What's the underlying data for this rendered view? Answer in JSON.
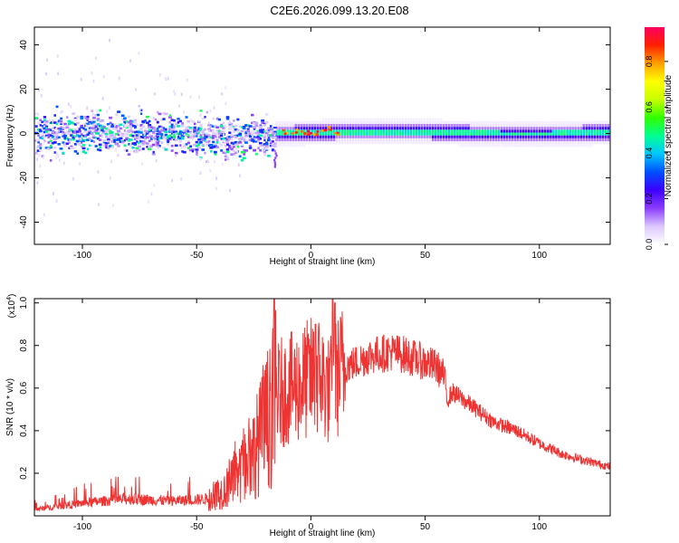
{
  "title": "C2E6.2026.099.13.20.E08",
  "chart_data": [
    {
      "type": "heatmap",
      "xlabel": "Height of straight line (km)",
      "ylabel": "Frequency (Hz)",
      "xlim": [
        -121,
        131
      ],
      "ylim": [
        -50,
        48
      ],
      "xticks": [
        -100,
        -50,
        0,
        50,
        100
      ],
      "yticks": [
        -40,
        -20,
        0,
        20,
        40
      ],
      "colorbar": {
        "label": "Normalized spectral amplitude",
        "range": [
          0,
          0.95
        ],
        "ticks": [
          0.0,
          0.2,
          0.4,
          0.6,
          0.8
        ],
        "colormap": [
          "#ffffff",
          "#dcc8ff",
          "#8a3cff",
          "#3c00ff",
          "#0050ff",
          "#00c8ff",
          "#00ff90",
          "#30ff00",
          "#c8ff00",
          "#ffff00",
          "#ffa000",
          "#ff2000",
          "#ff0060"
        ]
      },
      "description_values": {
        "noisy_band_range_km": [
          -121,
          -15
        ],
        "noisy_band_halfwidth_hz": 8,
        "stable_band_range_km": [
          -15,
          131
        ],
        "stable_band_center_hz": 0,
        "stable_band_peak_amplitude_near_km": [
          -5,
          10
        ]
      }
    },
    {
      "type": "line",
      "xlabel": "Height of straight line (km)",
      "ylabel": "SNR (10 * v/v)",
      "multiplier_label": "(x10",
      "multiplier_exp": "4",
      "multiplier_close": ")",
      "xlim": [
        -121,
        131
      ],
      "ylim": [
        0,
        1.02
      ],
      "xticks": [
        -100,
        -50,
        0,
        50,
        100
      ],
      "yticks": [
        0.2,
        0.4,
        0.6,
        0.8,
        1.0
      ],
      "ytick_labels": [
        "0.2",
        "0.4",
        "0.6",
        "0.8",
        "1.0"
      ],
      "series_color": "#ee3333",
      "envelope_km": [
        -121,
        -100,
        -80,
        -60,
        -45,
        -38,
        -30,
        -25,
        -20,
        -16,
        -13,
        -8,
        -4,
        0,
        4,
        8,
        10,
        14,
        20,
        25,
        30,
        35,
        40,
        45,
        50,
        55,
        58,
        60,
        62,
        70,
        80,
        90,
        100,
        110,
        120,
        131
      ],
      "envelope_snr": [
        0.03,
        0.06,
        0.08,
        0.07,
        0.08,
        0.12,
        0.2,
        0.3,
        0.42,
        0.55,
        0.58,
        0.6,
        0.62,
        0.65,
        0.66,
        0.58,
        0.62,
        0.7,
        0.72,
        0.75,
        0.76,
        0.77,
        0.76,
        0.74,
        0.72,
        0.7,
        0.66,
        0.55,
        0.58,
        0.52,
        0.44,
        0.4,
        0.34,
        0.29,
        0.26,
        0.23
      ],
      "spikes_km": [
        -16,
        2,
        9.5,
        10.5
      ],
      "spikes_snr": [
        1.02,
        0.9,
        1.02,
        1.0
      ]
    }
  ]
}
